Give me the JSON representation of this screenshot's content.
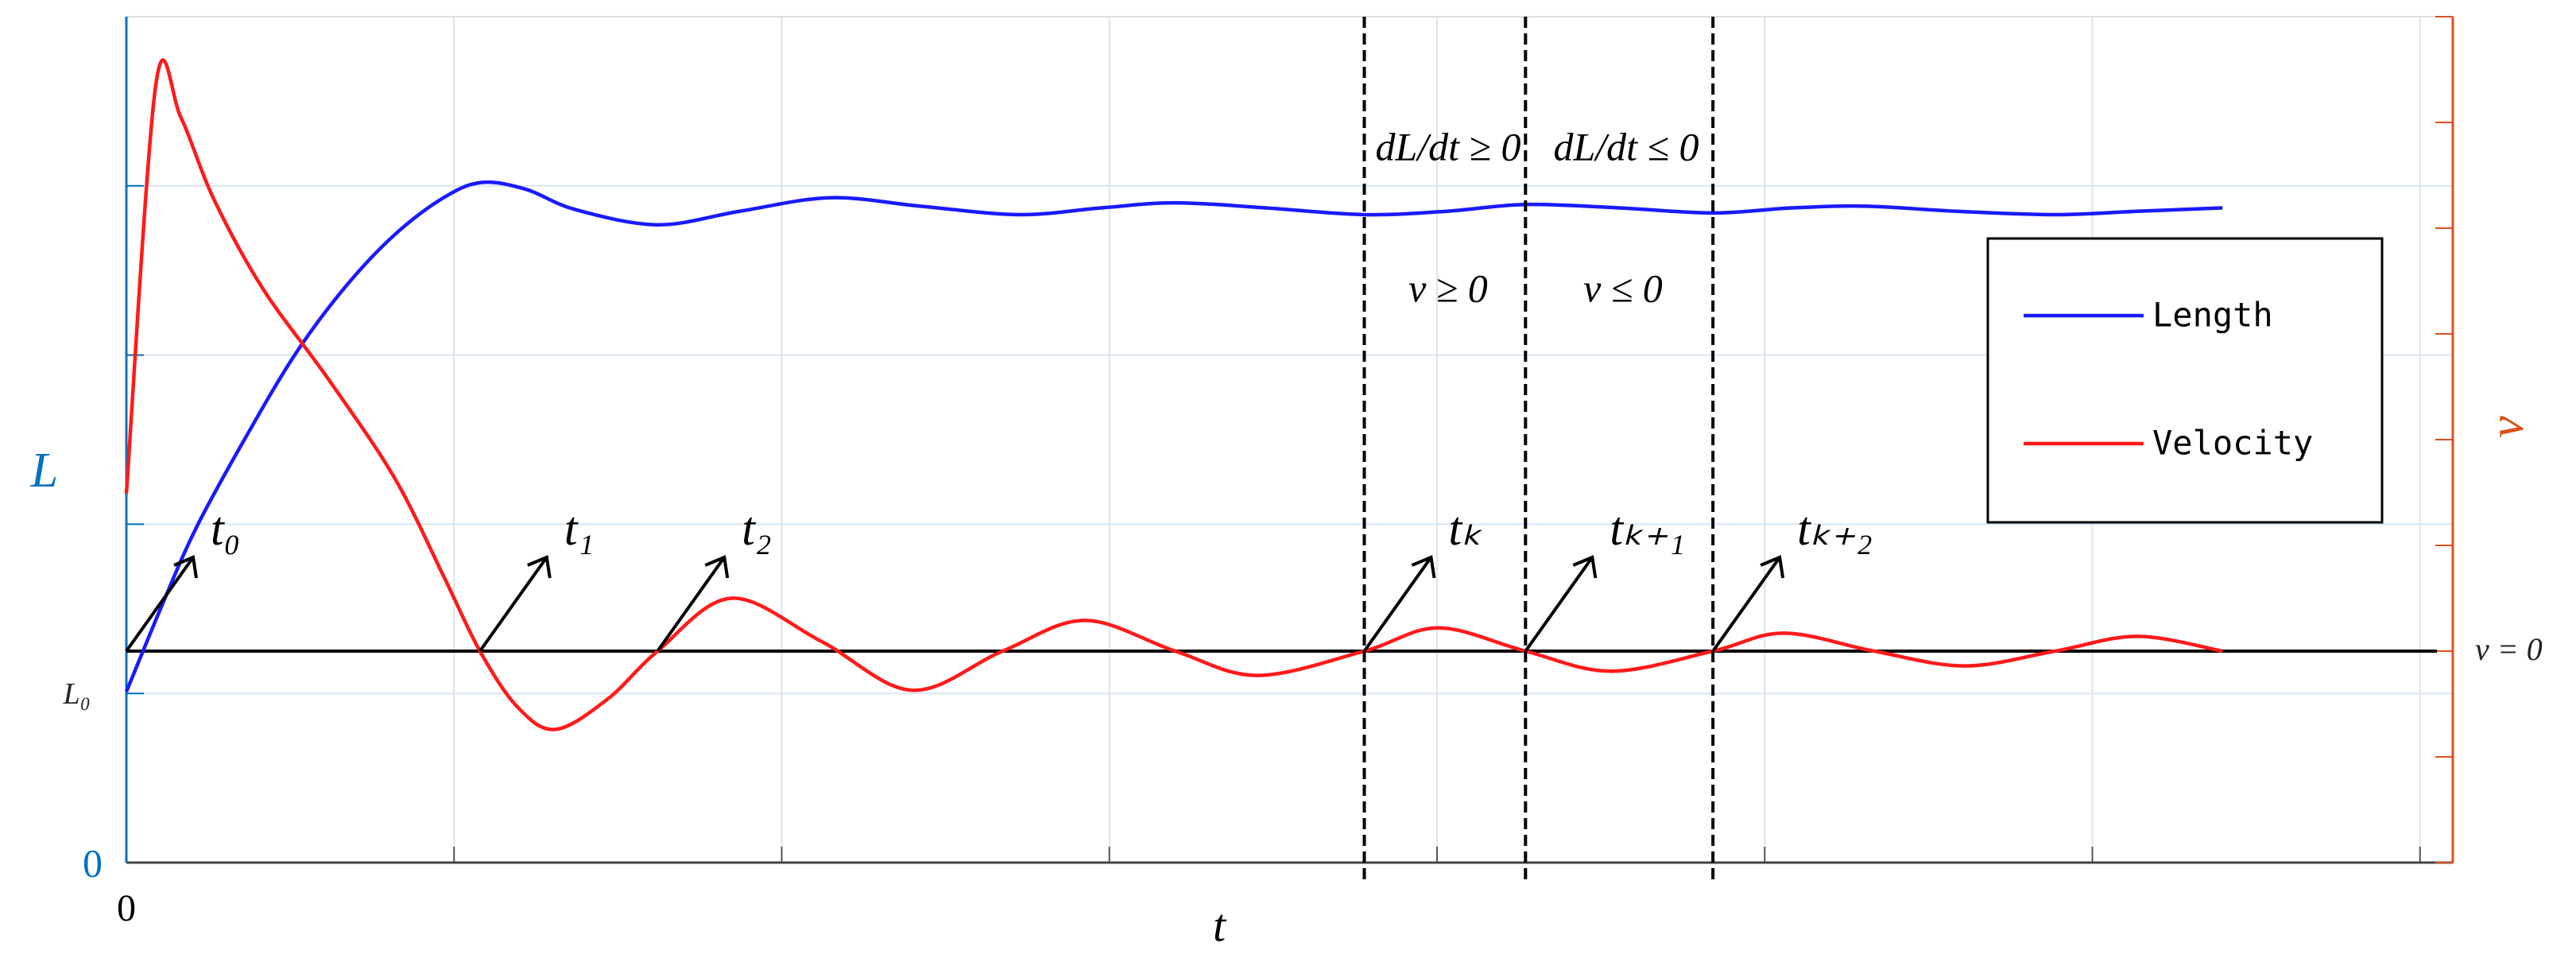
{
  "chart_data": {
    "type": "line",
    "xlabel": "t",
    "ylabel": "L",
    "y2label": "v",
    "xlim": [
      0,
      7.1
    ],
    "xticks": [
      0,
      {
        "value": 1,
        "label": null
      },
      {
        "value": 2,
        "label": null
      },
      {
        "value": 3,
        "label": null
      },
      {
        "value": 4,
        "label": null
      },
      {
        "value": 5,
        "label": null
      },
      {
        "value": 6,
        "label": null
      },
      {
        "value": 7,
        "label": null
      }
    ],
    "ylim": [
      0,
      5
    ],
    "yticks": [
      0,
      {
        "value": 1,
        "label": "L₀"
      },
      {
        "value": 2,
        "label": null
      },
      {
        "value": 3,
        "label": null
      },
      {
        "value": 4,
        "label": null
      }
    ],
    "y2lim": [
      -2,
      6
    ],
    "y2ticks": [
      {
        "value": -2,
        "label": null
      },
      {
        "value": -1,
        "label": null
      },
      {
        "value": 0,
        "label": "v = 0"
      },
      {
        "value": 1,
        "label": null
      },
      {
        "value": 2,
        "label": null
      },
      {
        "value": 3,
        "label": null
      },
      {
        "value": 4,
        "label": null
      },
      {
        "value": 5,
        "label": null
      },
      {
        "value": 6,
        "label": null
      }
    ],
    "grid": true,
    "legend": "right",
    "series": [
      {
        "name": "Length",
        "color": "#1a1aff",
        "x": [
          0,
          0.115,
          0.216,
          0.366,
          0.517,
          0.667,
          0.818,
          0.968,
          1.084,
          1.219,
          1.37,
          1.621,
          1.872,
          2.148,
          2.423,
          2.725,
          2.975,
          3.201,
          3.477,
          3.778,
          4.029,
          4.27,
          4.556,
          4.842,
          5.083,
          5.309,
          5.585,
          5.886,
          6.137,
          6.397
        ],
        "values": [
          1.01,
          1.55,
          1.99,
          2.52,
          3.01,
          3.4,
          3.71,
          3.93,
          4.02,
          3.98,
          3.86,
          3.77,
          3.85,
          3.93,
          3.88,
          3.83,
          3.87,
          3.9,
          3.87,
          3.83,
          3.85,
          3.89,
          3.87,
          3.84,
          3.87,
          3.88,
          3.85,
          3.83,
          3.85,
          3.87
        ]
      },
      {
        "name": "Velocity",
        "color": "#ff1a1a",
        "axis": "y2",
        "x": [
          0,
          0.09,
          0.166,
          0.266,
          0.416,
          0.617,
          0.818,
          0.968,
          1.079,
          1.194,
          1.31,
          1.47,
          1.621,
          1.846,
          2.122,
          2.398,
          2.674,
          2.925,
          3.201,
          3.452,
          3.778,
          4.004,
          4.27,
          4.531,
          4.842,
          5.058,
          5.334,
          5.61,
          5.886,
          6.137,
          6.397
        ],
        "values": [
          1.49,
          5.36,
          5.05,
          4.28,
          3.43,
          2.57,
          1.64,
          0.71,
          0,
          -0.53,
          -0.74,
          -0.45,
          0,
          0.5,
          0.09,
          -0.37,
          0,
          0.29,
          0,
          -0.23,
          0,
          0.22,
          0,
          -0.19,
          0,
          0.17,
          0,
          -0.14,
          0,
          0.14,
          0
        ]
      }
    ],
    "annotations": {
      "arrows": [
        {
          "label": "t₀",
          "x": 0
        },
        {
          "label": "t₁",
          "x": 1.079
        },
        {
          "label": "t₂",
          "x": 1.621
        },
        {
          "label": "tₖ",
          "x": 3.778
        },
        {
          "label": "tₖ₊₁",
          "x": 4.27
        },
        {
          "label": "tₖ₊₂",
          "x": 4.842
        }
      ],
      "vlines": [
        3.778,
        4.27,
        4.842
      ],
      "texts": [
        "dL/dt ≥ 0",
        "dL/dt ≤ 0",
        "v ≥ 0",
        "v ≤ 0"
      ]
    }
  }
}
